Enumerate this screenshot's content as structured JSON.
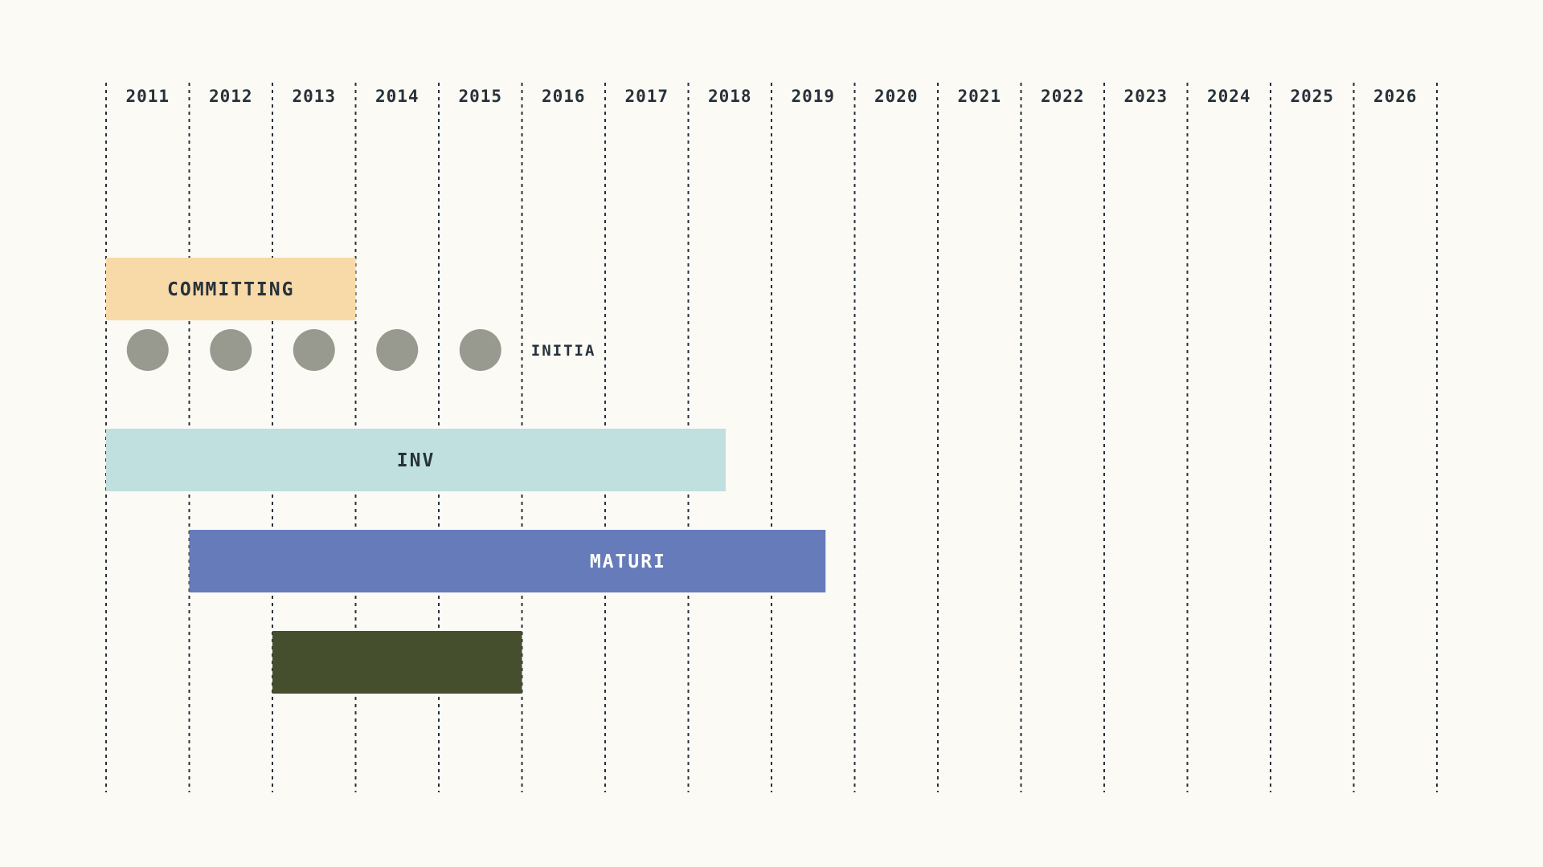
{
  "chart_data": {
    "type": "gantt",
    "x_axis": {
      "ticks": [
        "2011",
        "2012",
        "2013",
        "2014",
        "2015",
        "2016",
        "2017",
        "2018",
        "2019",
        "2020",
        "2021",
        "2022",
        "2023",
        "2024",
        "2025",
        "2026"
      ],
      "range": [
        2011,
        2027
      ],
      "grid": "dashed vertical lines at year boundaries",
      "position": "top"
    },
    "rows": [
      {
        "kind": "bar",
        "label": "COMMITTING",
        "start": 2011,
        "end": 2014,
        "color": "#f8d9a8",
        "label_color": "#27313a"
      },
      {
        "kind": "markers",
        "label": "INITIA",
        "points": [
          2011.5,
          2012.5,
          2013.5,
          2014.5,
          2015.5
        ],
        "color": "#999a8f",
        "label_color": "#27313a"
      },
      {
        "kind": "bar",
        "label": "INV",
        "start": 2011,
        "end": 2018.45,
        "color": "#c0dfdf",
        "label_color": "#27313a"
      },
      {
        "kind": "bar",
        "label": "MATURI",
        "start": 2012,
        "end": 2019.65,
        "color": "#667bba",
        "label_color": "#ffffff"
      },
      {
        "kind": "bar",
        "label": "",
        "start": 2013,
        "end": 2016,
        "color": "#454e2d",
        "label_color": "#ffffff"
      }
    ],
    "colors": {
      "background": "#fbfaf4",
      "grid": "#27313a",
      "text": "#27313a"
    }
  }
}
